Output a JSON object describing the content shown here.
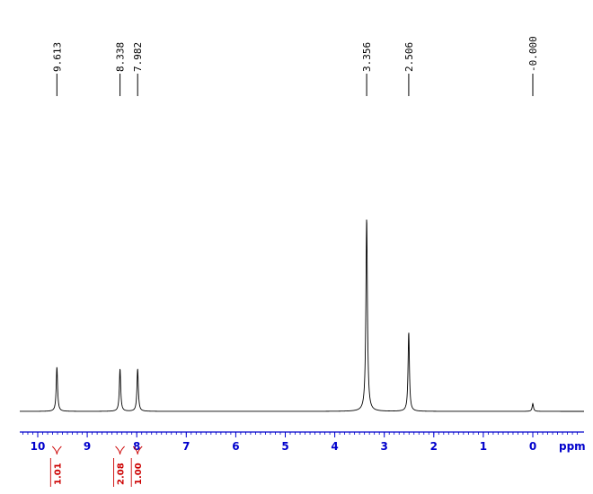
{
  "chart_data": {
    "type": "line",
    "title": "",
    "xlabel": "ppm",
    "ylabel": "",
    "x_axis": {
      "reversed": true,
      "range": [
        10.45,
        -0.95
      ],
      "major_ticks": [
        10,
        9,
        8,
        7,
        6,
        5,
        4,
        3,
        2,
        1,
        0
      ],
      "tick_labels": [
        "10",
        "9",
        "8",
        "7",
        "6",
        "5",
        "4",
        "3",
        "2",
        "1",
        "0"
      ],
      "minor_tick_step": 0.1
    },
    "grid": false,
    "peaks": [
      {
        "shift": 9.613,
        "label": "9.613",
        "relative_height": 0.23
      },
      {
        "shift": 8.338,
        "label": "8.338",
        "relative_height": 0.22
      },
      {
        "shift": 7.982,
        "label": "7.982",
        "relative_height": 0.22
      },
      {
        "shift": 3.356,
        "label": "3.356",
        "relative_height": 1.0
      },
      {
        "shift": 2.506,
        "label": "2.506",
        "relative_height": 0.41
      },
      {
        "shift": 0.0,
        "label": "-0.000",
        "relative_height": 0.04
      }
    ],
    "integrals": [
      {
        "center": 9.613,
        "value": "1.01"
      },
      {
        "center": 8.338,
        "value": "2.08"
      },
      {
        "center": 7.982,
        "value": "1.00"
      }
    ],
    "colors": {
      "spectrum": "#000000",
      "axis": "#0000cc",
      "integral": "#cc0000"
    }
  }
}
